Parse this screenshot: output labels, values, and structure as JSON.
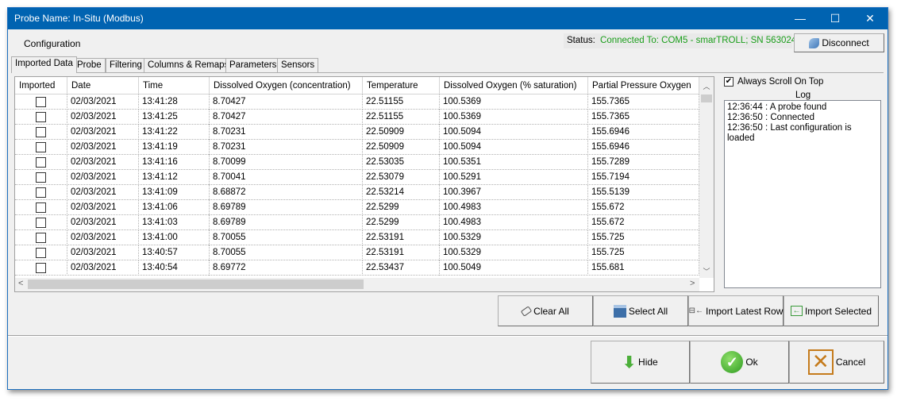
{
  "window": {
    "title": "Probe Name: In-Situ (Modbus)",
    "minimize": "—",
    "maximize": "☐",
    "close": "✕"
  },
  "menu": {
    "configuration": "Configuration"
  },
  "status": {
    "label": "Status:",
    "value": "Connected To: COM5 - smarTROLL; SN 563024",
    "value_color": "#1a9e1a"
  },
  "disconnect_label": "Disconnect",
  "tabs": [
    {
      "label": "Imported Data",
      "active": true
    },
    {
      "label": "Probe"
    },
    {
      "label": "Filtering"
    },
    {
      "label": "Columns & Remaps"
    },
    {
      "label": "Parameters"
    },
    {
      "label": "Sensors"
    }
  ],
  "table": {
    "columns": [
      "Imported",
      "Date",
      "Time",
      "Dissolved Oxygen (concentration)",
      "Temperature",
      "Dissolved Oxygen (% saturation)",
      "Partial Pressure Oxygen"
    ],
    "rows": [
      {
        "imported": false,
        "cells": [
          "02/03/2021",
          "13:41:28",
          "8.70427",
          "22.51155",
          "100.5369",
          "155.7365"
        ]
      },
      {
        "imported": false,
        "cells": [
          "02/03/2021",
          "13:41:25",
          "8.70427",
          "22.51155",
          "100.5369",
          "155.7365"
        ]
      },
      {
        "imported": false,
        "cells": [
          "02/03/2021",
          "13:41:22",
          "8.70231",
          "22.50909",
          "100.5094",
          "155.6946"
        ]
      },
      {
        "imported": false,
        "cells": [
          "02/03/2021",
          "13:41:19",
          "8.70231",
          "22.50909",
          "100.5094",
          "155.6946"
        ]
      },
      {
        "imported": false,
        "cells": [
          "02/03/2021",
          "13:41:16",
          "8.70099",
          "22.53035",
          "100.5351",
          "155.7289"
        ]
      },
      {
        "imported": false,
        "cells": [
          "02/03/2021",
          "13:41:12",
          "8.70041",
          "22.53079",
          "100.5291",
          "155.7194"
        ]
      },
      {
        "imported": false,
        "cells": [
          "02/03/2021",
          "13:41:09",
          "8.68872",
          "22.53214",
          "100.3967",
          "155.5139"
        ]
      },
      {
        "imported": false,
        "cells": [
          "02/03/2021",
          "13:41:06",
          "8.69789",
          "22.5299",
          "100.4983",
          "155.672"
        ]
      },
      {
        "imported": false,
        "cells": [
          "02/03/2021",
          "13:41:03",
          "8.69789",
          "22.5299",
          "100.4983",
          "155.672"
        ]
      },
      {
        "imported": false,
        "cells": [
          "02/03/2021",
          "13:41:00",
          "8.70055",
          "22.53191",
          "100.5329",
          "155.725"
        ]
      },
      {
        "imported": false,
        "cells": [
          "02/03/2021",
          "13:40:57",
          "8.70055",
          "22.53191",
          "100.5329",
          "155.725"
        ]
      },
      {
        "imported": false,
        "cells": [
          "02/03/2021",
          "13:40:54",
          "8.69772",
          "22.53437",
          "100.5049",
          "155.681"
        ]
      }
    ]
  },
  "log": {
    "always_scroll_label": "Always Scroll On Top",
    "always_scroll_checked": true,
    "title": "Log",
    "entries": [
      "12:36:44 : A probe found",
      "12:36:50 : Connected",
      "12:36:50 : Last configuration is loaded"
    ]
  },
  "actions": {
    "clear_all": "Clear All",
    "select_all": "Select All",
    "import_latest": "Import Latest Row",
    "import_selected": "Import Selected"
  },
  "footer": {
    "hide": "Hide",
    "ok": "Ok",
    "cancel": "Cancel"
  }
}
